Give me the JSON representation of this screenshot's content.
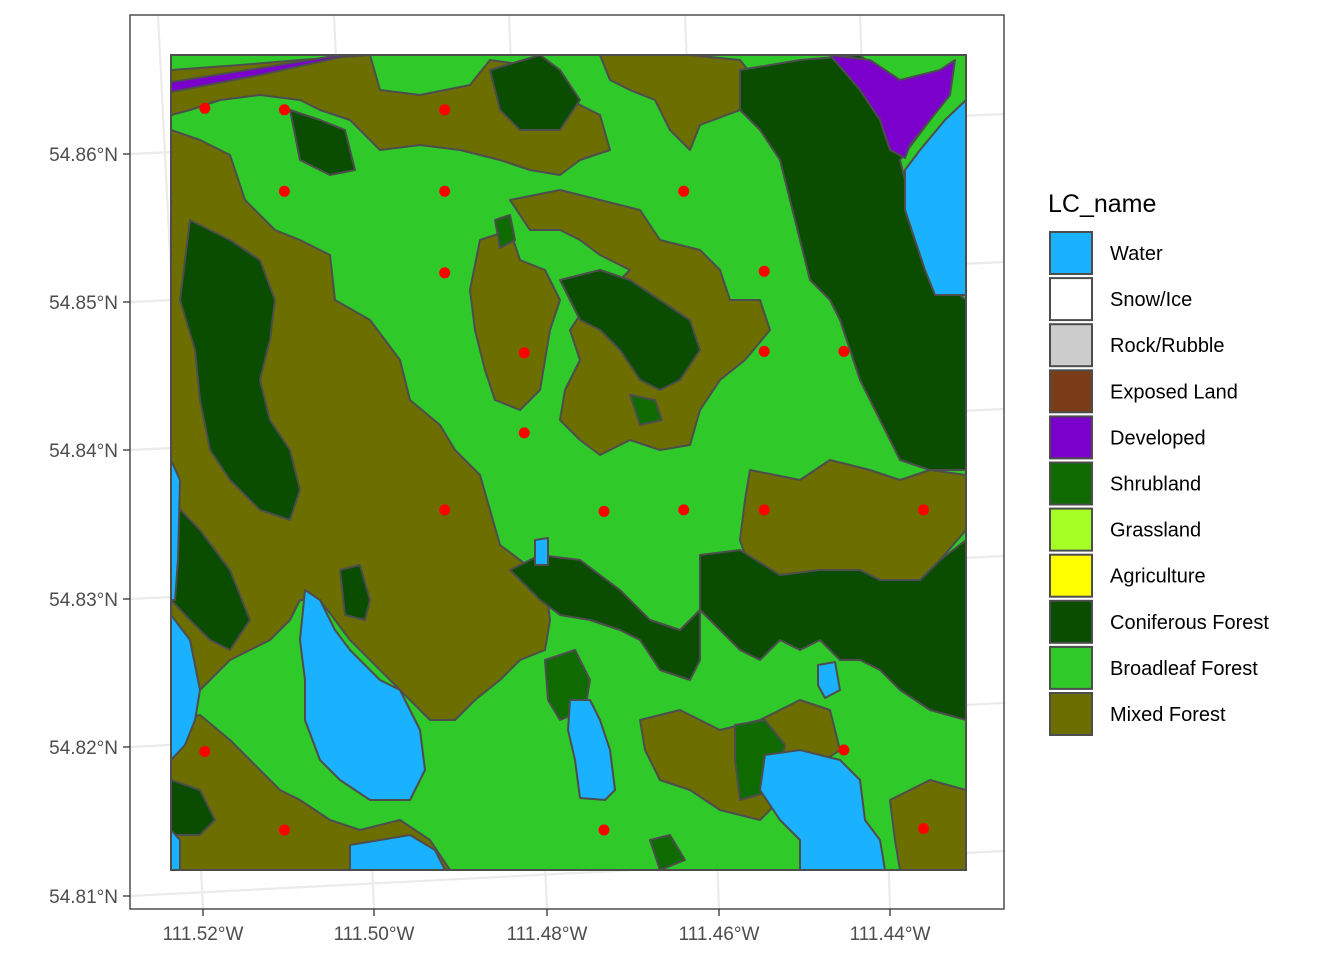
{
  "map": {
    "lat_ticks": [
      "54.86°N",
      "54.85°N",
      "54.84°N",
      "54.83°N",
      "54.82°N",
      "54.81°N"
    ],
    "lon_ticks": [
      "111.52°W",
      "111.50°W",
      "111.48°W",
      "111.46°W",
      "111.44°W"
    ],
    "lat_tick_values": [
      54.86,
      54.85,
      54.84,
      54.83,
      54.82,
      54.81
    ],
    "lon_tick_values": [
      -111.52,
      -111.5,
      -111.48,
      -111.46,
      -111.44
    ],
    "grid": true,
    "extent": {
      "lon_min": -111.5236,
      "lon_max": -111.4318,
      "lat_min": 54.8118,
      "lat_max": 54.8668
    },
    "sample_points": [
      {
        "lon": -111.5197,
        "lat": 54.8632
      },
      {
        "lon": -111.5105,
        "lat": 54.8631
      },
      {
        "lon": -111.492,
        "lat": 54.8631
      },
      {
        "lon": -111.5105,
        "lat": 54.8576
      },
      {
        "lon": -111.492,
        "lat": 54.8576
      },
      {
        "lon": -111.4644,
        "lat": 54.8576
      },
      {
        "lon": -111.492,
        "lat": 54.8521
      },
      {
        "lon": -111.4551,
        "lat": 54.8522
      },
      {
        "lon": -111.4828,
        "lat": 54.8467
      },
      {
        "lon": -111.4551,
        "lat": 54.8468
      },
      {
        "lon": -111.4459,
        "lat": 54.8468
      },
      {
        "lon": -111.4828,
        "lat": 54.8413
      },
      {
        "lon": -111.492,
        "lat": 54.8361
      },
      {
        "lon": -111.4736,
        "lat": 54.836
      },
      {
        "lon": -111.4644,
        "lat": 54.8361
      },
      {
        "lon": -111.4551,
        "lat": 54.8361
      },
      {
        "lon": -111.4367,
        "lat": 54.8361
      },
      {
        "lon": -111.5197,
        "lat": 54.8198
      },
      {
        "lon": -111.4459,
        "lat": 54.8199
      },
      {
        "lon": -111.5105,
        "lat": 54.8145
      },
      {
        "lon": -111.4736,
        "lat": 54.8145
      },
      {
        "lon": -111.4367,
        "lat": 54.8146
      }
    ],
    "point_color": "#ff0000"
  },
  "legend": {
    "title": "LC_name",
    "placement": "right",
    "items": [
      {
        "label": "Water",
        "color": "#1ab2ff"
      },
      {
        "label": "Snow/Ice",
        "color": "#ffffff"
      },
      {
        "label": "Rock/Rubble",
        "color": "#cccccc"
      },
      {
        "label": "Exposed Land",
        "color": "#7a3d17"
      },
      {
        "label": "Developed",
        "color": "#7b00cc"
      },
      {
        "label": "Shrubland",
        "color": "#0f6b00"
      },
      {
        "label": "Grassland",
        "color": "#a5ff24"
      },
      {
        "label": "Agriculture",
        "color": "#ffff00"
      },
      {
        "label": "Coniferous Forest",
        "color": "#0a4d00"
      },
      {
        "label": "Broadleaf Forest",
        "color": "#2fc92a"
      },
      {
        "label": "Mixed Forest",
        "color": "#6d6e00"
      }
    ]
  }
}
